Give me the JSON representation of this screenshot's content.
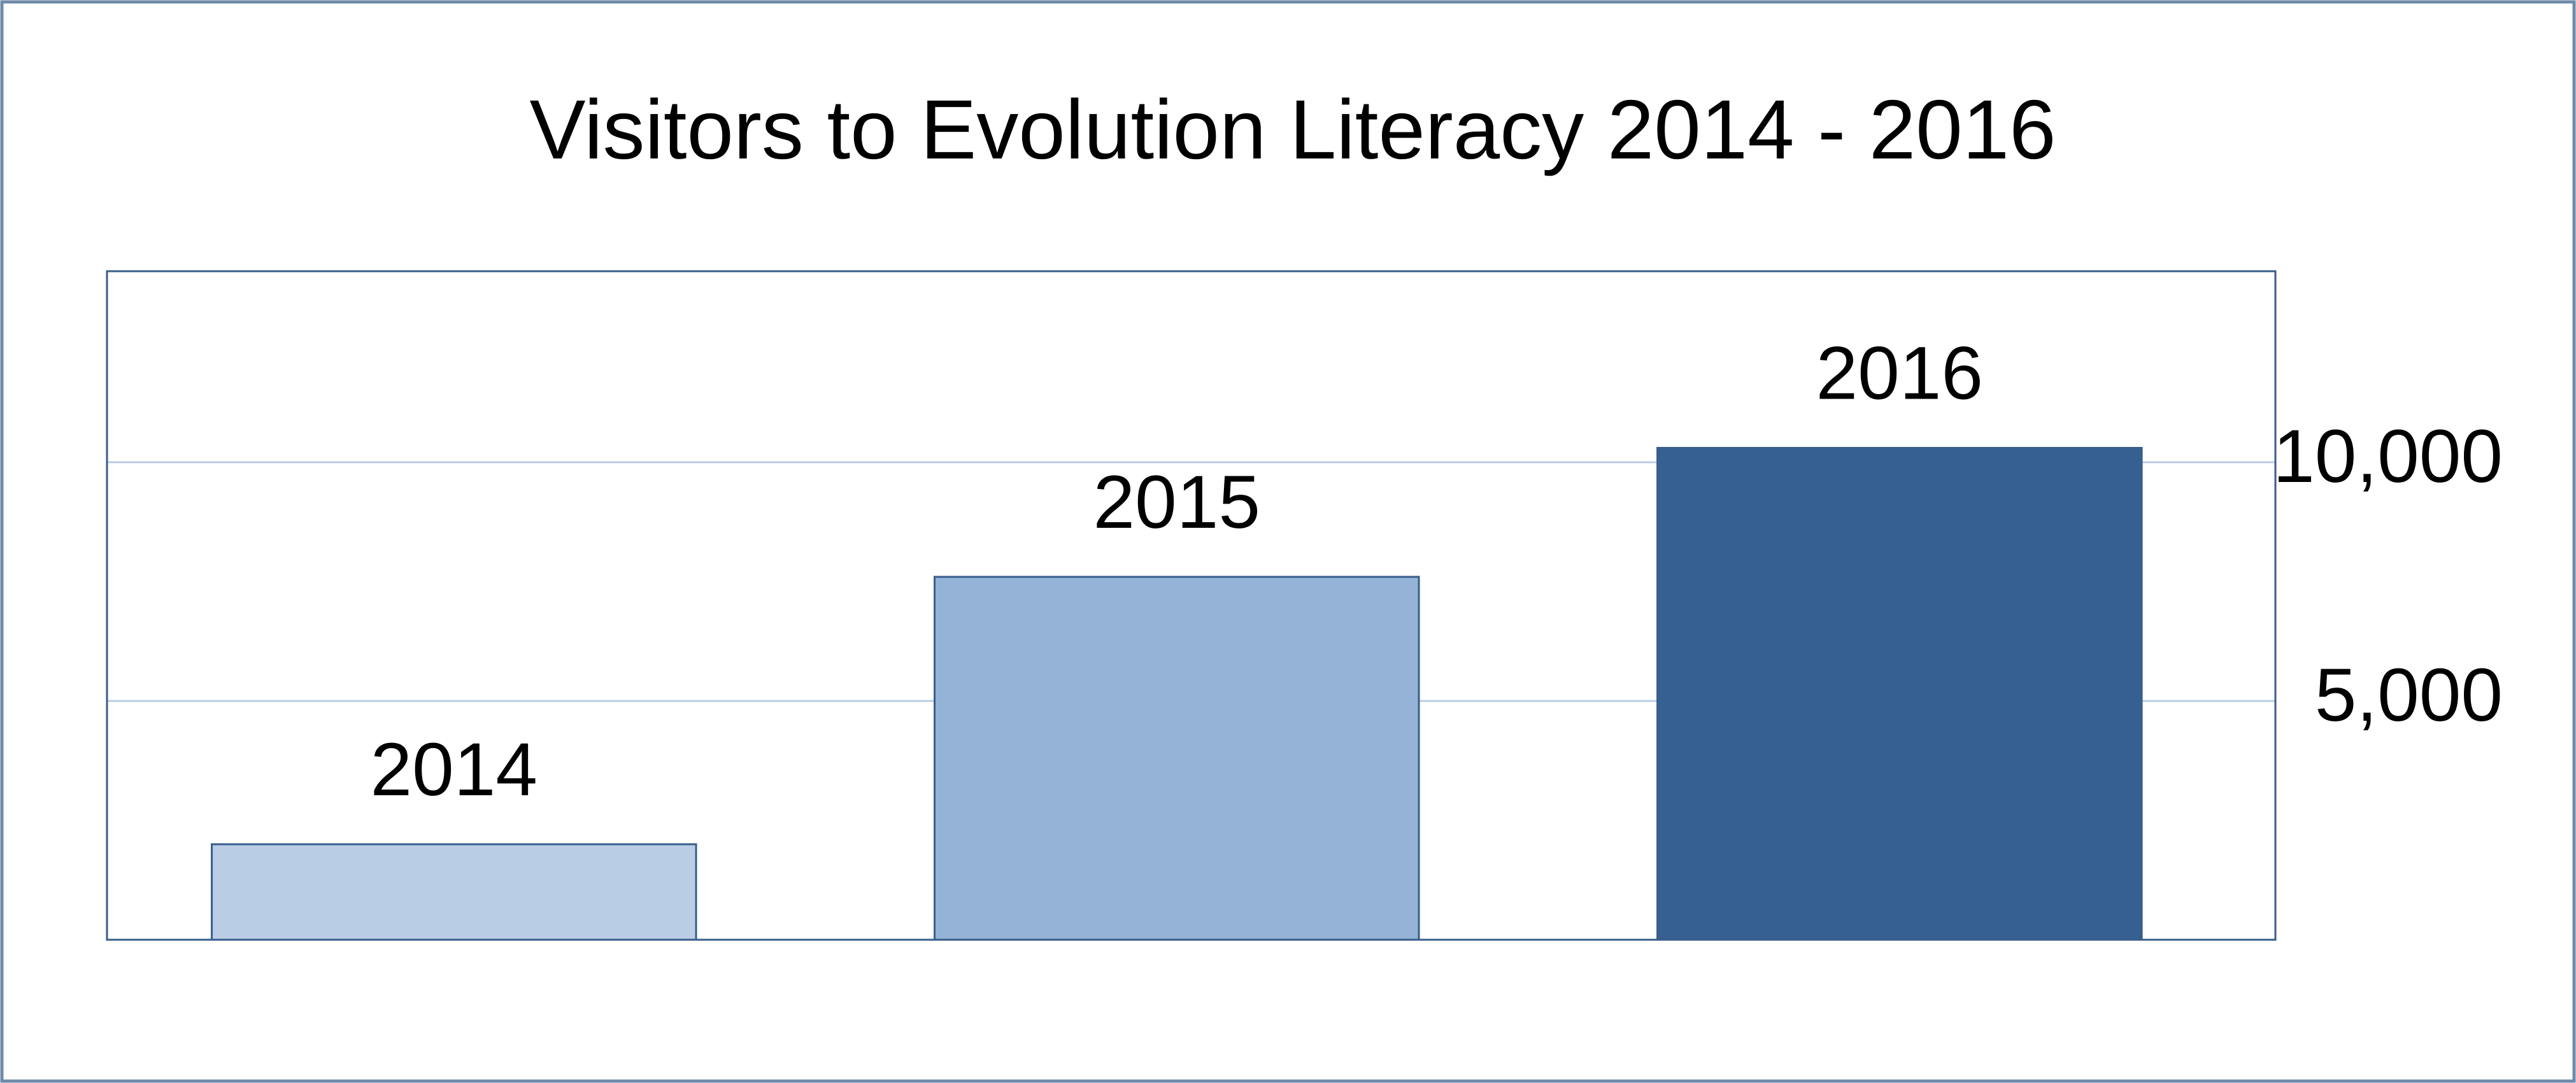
{
  "chart_data": {
    "type": "bar",
    "title": "Visitors to Evolution Literacy 2014 - 2016",
    "categories": [
      "2014",
      "2015",
      "2016"
    ],
    "values": [
      2000,
      7600,
      10300
    ],
    "colors": [
      "#b9cde5",
      "#95b3d7",
      "#376092"
    ],
    "ylim": [
      0,
      14000
    ],
    "yticks": [
      {
        "value": 5000,
        "label": "5,000"
      },
      {
        "value": 10000,
        "label": "10,000"
      }
    ],
    "grid": true,
    "y_axis_side": "right"
  }
}
